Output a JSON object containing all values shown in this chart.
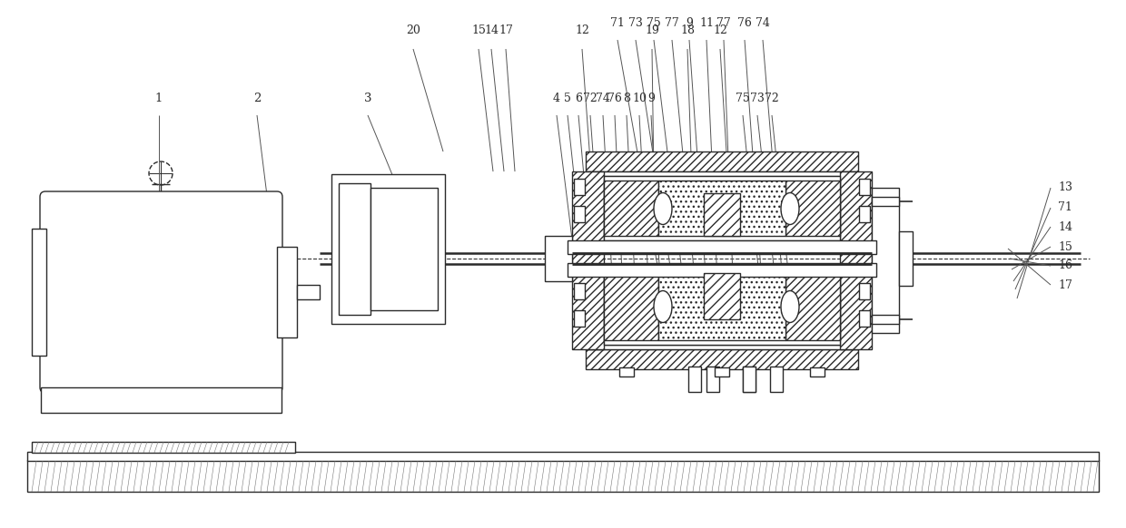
{
  "bg_color": "#ffffff",
  "line_color": "#2a2a2a",
  "figsize": [
    12.4,
    5.82
  ],
  "dpi": 100,
  "top_labels_r1": [
    [
      680,
      548,
      728,
      267,
      "71"
    ],
    [
      700,
      548,
      742,
      262,
      "73"
    ],
    [
      720,
      548,
      754,
      258,
      "75"
    ],
    [
      740,
      548,
      767,
      254,
      "77"
    ],
    [
      759,
      548,
      779,
      251,
      "9"
    ],
    [
      778,
      548,
      791,
      249,
      "11"
    ],
    [
      797,
      548,
      808,
      251,
      "77"
    ],
    [
      820,
      548,
      840,
      255,
      "76"
    ],
    [
      840,
      548,
      863,
      258,
      "74"
    ]
  ],
  "mid_labels": [
    [
      613,
      465,
      636,
      270,
      "4"
    ],
    [
      625,
      465,
      645,
      268,
      "5"
    ],
    [
      637,
      465,
      654,
      265,
      "6"
    ],
    [
      650,
      465,
      664,
      263,
      "72"
    ],
    [
      664,
      465,
      675,
      261,
      "74"
    ],
    [
      677,
      465,
      686,
      259,
      "76"
    ],
    [
      690,
      465,
      700,
      257,
      "8"
    ],
    [
      704,
      465,
      715,
      255,
      "10"
    ],
    [
      717,
      465,
      728,
      253,
      "9"
    ],
    [
      818,
      465,
      838,
      258,
      "75"
    ],
    [
      834,
      465,
      855,
      261,
      "73"
    ],
    [
      850,
      465,
      870,
      263,
      "72"
    ]
  ],
  "right_labels": [
    [
      1165,
      375,
      1120,
      253,
      "13"
    ],
    [
      1165,
      353,
      1118,
      263,
      "71"
    ],
    [
      1165,
      332,
      1116,
      272,
      "14"
    ],
    [
      1165,
      310,
      1114,
      285,
      "15"
    ],
    [
      1165,
      289,
      1112,
      297,
      "16"
    ],
    [
      1165,
      268,
      1110,
      308,
      "17"
    ]
  ],
  "bottom_labels": [
    [
      455,
      540,
      488,
      415,
      "20"
    ],
    [
      527,
      540,
      543,
      393,
      "15"
    ],
    [
      541,
      540,
      555,
      393,
      "14"
    ],
    [
      557,
      540,
      567,
      393,
      "17"
    ],
    [
      641,
      540,
      651,
      390,
      "12"
    ],
    [
      718,
      540,
      720,
      385,
      "19"
    ],
    [
      757,
      540,
      762,
      382,
      "18"
    ],
    [
      793,
      540,
      802,
      382,
      "12"
    ]
  ],
  "left_labels": [
    [
      175,
      465,
      175,
      328,
      "1"
    ],
    [
      283,
      465,
      306,
      270,
      "2"
    ],
    [
      405,
      465,
      486,
      258,
      "3"
    ]
  ]
}
